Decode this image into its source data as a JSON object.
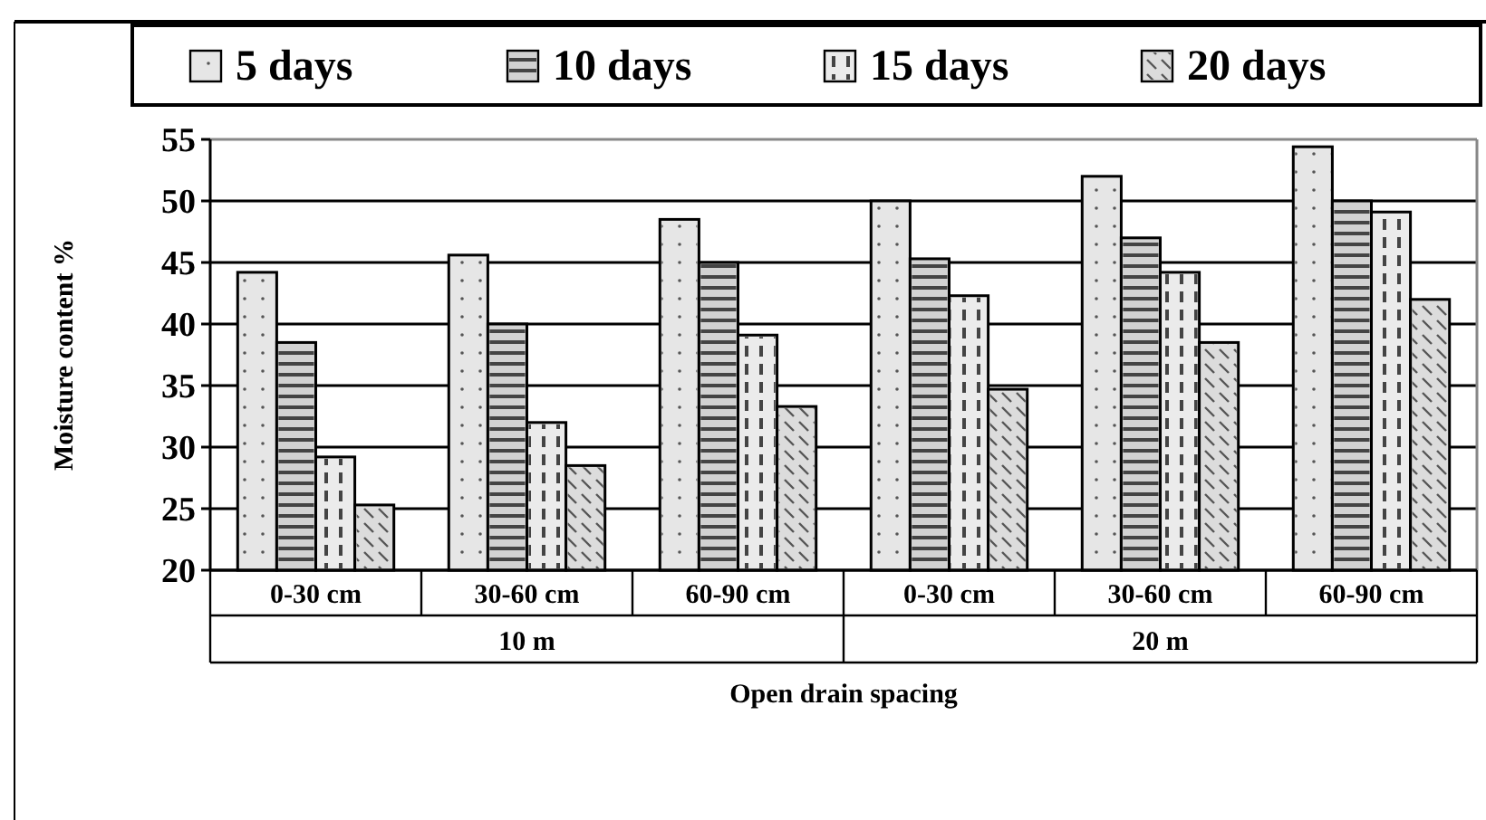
{
  "chart_data": {
    "type": "bar",
    "xlabel": "Open drain spacing",
    "ylabel": "Moisture content %",
    "categories": [
      "0-30 cm",
      "30-60 cm",
      "60-90 cm",
      "0-30 cm",
      "30-60 cm",
      "60-90 cm"
    ],
    "annotations": [
      "10 m",
      "20 m"
    ],
    "series": [
      {
        "name": "5 days",
        "color": "#e6e6e6",
        "values": [
          44.2,
          45.6,
          48.5,
          50,
          52,
          54.4
        ]
      },
      {
        "name": "10 days",
        "color": "#d2d2d2",
        "values": [
          38.5,
          40,
          45,
          45.3,
          47,
          50
        ]
      },
      {
        "name": "15 days",
        "color": "#ebebeb",
        "values": [
          29.2,
          32,
          39.1,
          42.3,
          44.2,
          49.1
        ]
      },
      {
        "name": "20 days",
        "color": "#dcdcdc",
        "values": [
          25.3,
          28.5,
          33.3,
          34.7,
          38.5,
          42
        ]
      }
    ],
    "ylim": [
      20,
      55
    ],
    "yticks": [
      20,
      25,
      30,
      35,
      40,
      45,
      50,
      55
    ],
    "grid": "y",
    "legend": "top"
  }
}
